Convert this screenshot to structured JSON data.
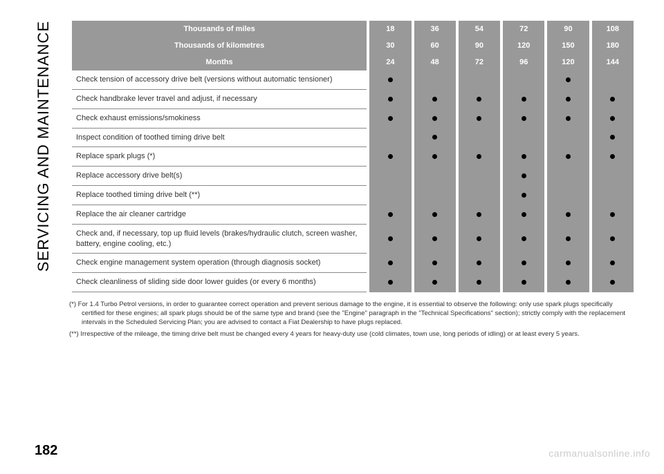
{
  "section_title": "SERVICING AND MAINTENANCE",
  "page_number": "182",
  "watermark": "carmanualsonline.info",
  "table": {
    "header_rows": [
      {
        "label": "Thousands of miles",
        "values": [
          "18",
          "36",
          "54",
          "72",
          "90",
          "108"
        ]
      },
      {
        "label": "Thousands of kilometres",
        "values": [
          "30",
          "60",
          "90",
          "120",
          "150",
          "180"
        ]
      },
      {
        "label": "Months",
        "values": [
          "24",
          "48",
          "72",
          "96",
          "120",
          "144"
        ]
      }
    ],
    "body_rows": [
      {
        "label": "Check tension of accessory drive belt (versions without automatic tensioner)",
        "dots": [
          true,
          false,
          false,
          false,
          true,
          false
        ]
      },
      {
        "label": "Check handbrake lever travel and adjust, if necessary",
        "dots": [
          true,
          true,
          true,
          true,
          true,
          true
        ]
      },
      {
        "label": "Check exhaust emissions/smokiness",
        "dots": [
          true,
          true,
          true,
          true,
          true,
          true
        ]
      },
      {
        "label": "Inspect condition of toothed timing drive belt",
        "dots": [
          false,
          true,
          false,
          false,
          false,
          true
        ]
      },
      {
        "label": "Replace spark plugs (*)",
        "dots": [
          true,
          true,
          true,
          true,
          true,
          true
        ]
      },
      {
        "label": "Replace accessory drive belt(s)",
        "dots": [
          false,
          false,
          false,
          true,
          false,
          false
        ]
      },
      {
        "label": "Replace toothed timing drive belt (**)",
        "dots": [
          false,
          false,
          false,
          true,
          false,
          false
        ]
      },
      {
        "label": "Replace the air cleaner cartridge",
        "dots": [
          true,
          true,
          true,
          true,
          true,
          true
        ]
      },
      {
        "label": "Check and, if necessary, top up fluid levels (brakes/hydraulic clutch, screen washer, battery, engine cooling, etc.)",
        "dots": [
          true,
          true,
          true,
          true,
          true,
          true
        ]
      },
      {
        "label": "Check engine management system operation (through diagnosis socket)",
        "dots": [
          true,
          true,
          true,
          true,
          true,
          true
        ]
      },
      {
        "label": "Check cleanliness of sliding side door lower guides (or every 6 months)",
        "dots": [
          true,
          true,
          true,
          true,
          true,
          true
        ]
      }
    ]
  },
  "footnotes": [
    "(*) For 1.4 Turbo Petrol versions, in order to guarantee correct operation and prevent serious damage to the engine, it is essential to observe the following: only use spark plugs specifically certified for these engines; all spark plugs should be of the same type and brand (see the \"Engine\" paragraph in the \"Technical Specifications\" section); strictly comply with the replacement intervals in the Scheduled Servicing Plan; you are advised to contact a Fiat Dealership to have plugs replaced.",
    "(**) Irrespective of the mileage, the timing drive belt must be changed every 4 years for heavy-duty use (cold climates, town use, long periods of idling) or at least every 5 years."
  ],
  "colors": {
    "header_bg": "#999999",
    "header_text": "#ffffff",
    "cell_bg": "#999999",
    "dot": "#000000",
    "watermark": "#cccccc"
  }
}
